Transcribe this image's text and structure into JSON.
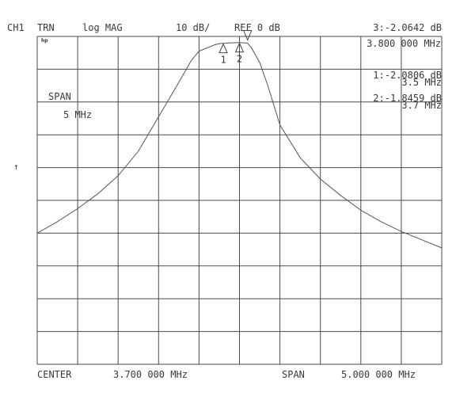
{
  "header": {
    "channel": "CH1",
    "mode": "TRN",
    "format": "log MAG",
    "scale": "10 dB/",
    "reference": "REF 0 dB",
    "active_marker_readout": "3:-2.0642 dB",
    "active_marker_freq": "3.800 000 MHz"
  },
  "logo": "hp",
  "markers": [
    {
      "label": "1",
      "readout": "1:-2.0806 dB",
      "freq": "3.5 MHz"
    },
    {
      "label": "2",
      "readout": "2:-1.8459 dB",
      "freq": "3.7 MHz"
    }
  ],
  "span_label": "SPAN",
  "span_value": "5 MHz",
  "ref_arrow": "↑",
  "footer": {
    "center_label": "CENTER",
    "center_value": "3.700 000 MHz",
    "span_label": "SPAN",
    "span_value": "5.000 000 MHz"
  },
  "chart_data": {
    "type": "line",
    "xlabel": "",
    "ylabel": "",
    "x_unit": "MHz",
    "y_unit": "dB",
    "xlim": [
      1.2,
      6.2
    ],
    "ylim": [
      -100,
      0
    ],
    "grid": true,
    "grid_divisions": {
      "x": 10,
      "y": 10
    },
    "series": [
      {
        "x": [
          1.2,
          1.45,
          1.7,
          1.95,
          2.2,
          2.45,
          2.7,
          2.95,
          3.1,
          3.2,
          3.3,
          3.4,
          3.45,
          3.5,
          3.6,
          3.7,
          3.8,
          3.85,
          3.95,
          4.05,
          4.2,
          4.45,
          4.7,
          4.95,
          5.2,
          5.45,
          5.7,
          5.95,
          6.2
        ],
        "y": [
          -60,
          -56.5,
          -52.5,
          -48,
          -42.5,
          -35,
          -24.5,
          -14,
          -7.5,
          -4.5,
          -3.5,
          -2.5,
          -2.2,
          -2.08,
          -1.95,
          -1.85,
          -2.06,
          -3.5,
          -8,
          -15,
          -27,
          -37,
          -43.5,
          -48.5,
          -53,
          -56.5,
          -59.5,
          -62,
          -64.5
        ]
      }
    ],
    "markers": [
      {
        "label": "1",
        "x": 3.5,
        "y": -2.0806
      },
      {
        "label": "2",
        "x": 3.7,
        "y": -1.8459
      },
      {
        "label": "3",
        "x": 3.8,
        "y": -2.0642
      }
    ]
  }
}
